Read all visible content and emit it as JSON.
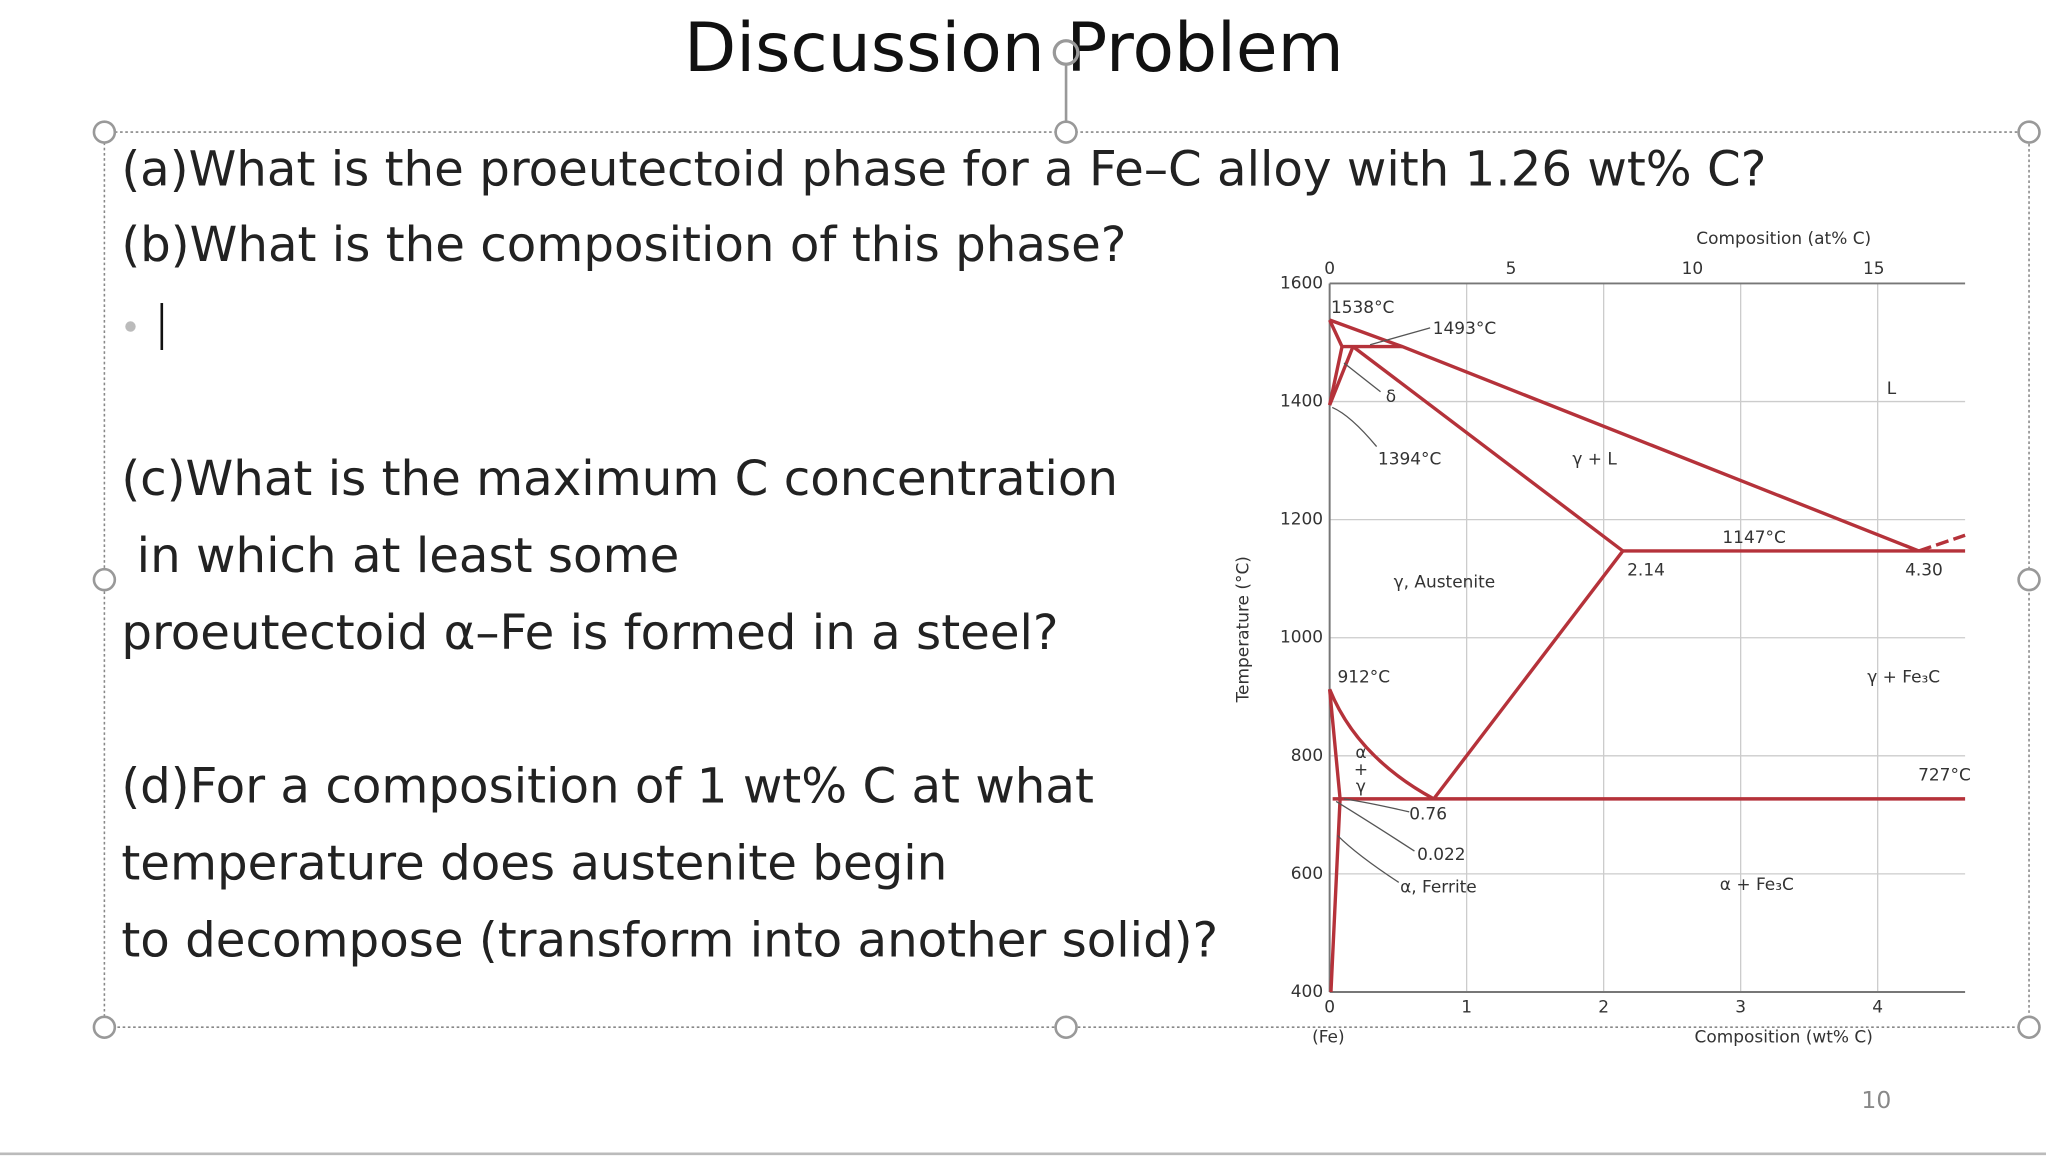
{
  "title": "Discussion Problem",
  "questions": [
    "(a)What is the proeutectoid phase for a Fe–C alloy with 1.26 wt% C?",
    "(b)What is the composition of this phase?",
    "(c)What is the maximum C concentration",
    " in which at least some",
    "proeutectoid α–Fe is formed in a steel?",
    "(d)For a composition of 1 wt% C at what",
    "temperature does austenite begin",
    "to decompose (transform into another solid)?"
  ],
  "slide_number": "10",
  "figure": {
    "top_axis_title": "Composition (at% C)",
    "top_ticks": [
      "0",
      "5",
      "10",
      "15"
    ],
    "bottom_axis_title": "Composition (wt% C)",
    "bottom_ticks": [
      "0",
      "1",
      "2",
      "3",
      "4"
    ],
    "bottom_origin_label": "(Fe)",
    "y_axis_title": "Temperature (°C)",
    "y_ticks": [
      "1600",
      "1400",
      "1200",
      "1000",
      "800",
      "600",
      "400"
    ],
    "labels": [
      "1538°C",
      "1493°C",
      "δ",
      "1394°C",
      "γ + L",
      "L",
      "1147°C",
      "2.14",
      "4.30",
      "γ, Austenite",
      "912°C",
      "γ + Fe₃C",
      "α",
      "+",
      "γ",
      "727°C",
      "0.76",
      "0.022",
      "α, Ferrite",
      "α + Fe₃C"
    ]
  }
}
